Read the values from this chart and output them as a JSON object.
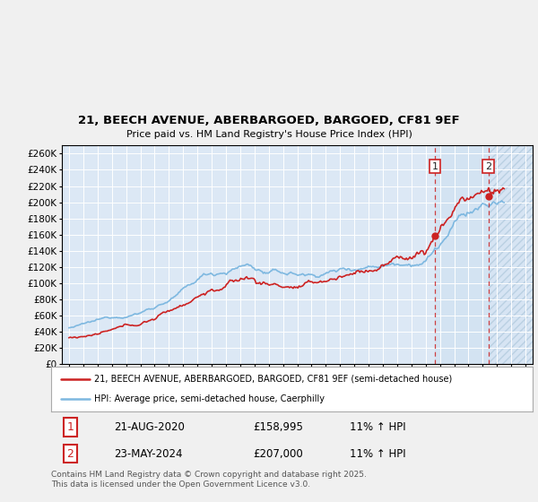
{
  "title": "21, BEECH AVENUE, ABERBARGOED, BARGOED, CF81 9EF",
  "subtitle": "Price paid vs. HM Land Registry's House Price Index (HPI)",
  "ylim": [
    0,
    270000
  ],
  "yticks": [
    0,
    20000,
    40000,
    60000,
    80000,
    100000,
    120000,
    140000,
    160000,
    180000,
    200000,
    220000,
    240000,
    260000
  ],
  "xlim_start": 1994.5,
  "xlim_end": 2027.5,
  "xticks": [
    1995,
    1996,
    1997,
    1998,
    1999,
    2000,
    2001,
    2002,
    2003,
    2004,
    2005,
    2006,
    2007,
    2008,
    2009,
    2010,
    2011,
    2012,
    2013,
    2014,
    2015,
    2016,
    2017,
    2018,
    2019,
    2020,
    2021,
    2022,
    2023,
    2024,
    2025,
    2026,
    2027
  ],
  "outer_bg": "#f0f0f0",
  "plot_bg": "#dce8f5",
  "grid_color": "#ffffff",
  "hpi_color": "#7eb8e0",
  "price_color": "#cc2222",
  "vline1_x": 2020.64,
  "vline2_x": 2024.39,
  "marker1_date": "21-AUG-2020",
  "marker1_price": "£158,995",
  "marker1_hpi": "11% ↑ HPI",
  "marker2_date": "23-MAY-2024",
  "marker2_price": "£207,000",
  "marker2_hpi": "11% ↑ HPI",
  "legend_line1": "21, BEECH AVENUE, ABERBARGOED, BARGOED, CF81 9EF (semi-detached house)",
  "legend_line2": "HPI: Average price, semi-detached house, Caerphilly",
  "footer": "Contains HM Land Registry data © Crown copyright and database right 2025.\nThis data is licensed under the Open Government Licence v3.0.",
  "hatched_start": 2024.39,
  "shade_start": 2020.64,
  "dot1_val": 158995,
  "dot2_val": 207000,
  "hpi_dot1_val": 143239,
  "hpi_dot2_val": 186486
}
